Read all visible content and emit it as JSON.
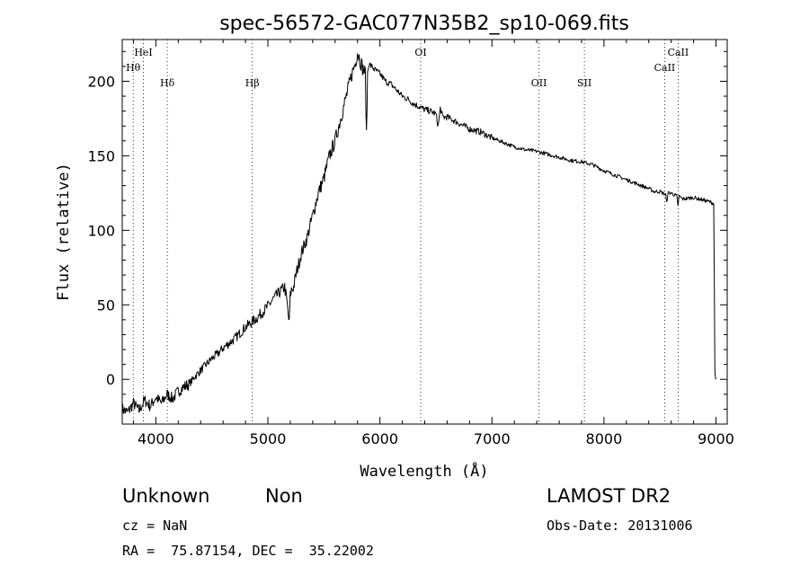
{
  "chart_data": {
    "type": "line",
    "title": "spec-56572-GAC077N35B2_sp10-069.fits",
    "xlabel": "Wavelength (Å)",
    "ylabel": "Flux (relative)",
    "xlim": [
      3700,
      9100
    ],
    "ylim": [
      -30,
      228
    ],
    "xticks": [
      4000,
      5000,
      6000,
      7000,
      8000,
      9000
    ],
    "yticks": [
      0,
      50,
      100,
      150,
      200
    ],
    "grid": false,
    "series": [
      {
        "x": [
          3700,
          3750,
          3800,
          3850,
          3900,
          3950,
          4000,
          4050,
          4100,
          4150,
          4200,
          4250,
          4300,
          4350,
          4400,
          4450,
          4500,
          4550,
          4600,
          4650,
          4700,
          4750,
          4800,
          4850,
          4900,
          4950,
          5000,
          5050,
          5100,
          5150,
          5170,
          5190,
          5200,
          5210,
          5230,
          5250,
          5300,
          5350,
          5400,
          5450,
          5500,
          5550,
          5600,
          5650,
          5700,
          5750,
          5780,
          5800,
          5820,
          5850,
          5870,
          5880,
          5890,
          5900,
          5950,
          6000,
          6050,
          6100,
          6150,
          6200,
          6250,
          6300,
          6350,
          6400,
          6450,
          6500,
          6520,
          6540,
          6560,
          6600,
          6700,
          6800,
          6900,
          7000,
          7100,
          7200,
          7300,
          7400,
          7500,
          7600,
          7700,
          7800,
          7900,
          8000,
          8100,
          8200,
          8300,
          8400,
          8450,
          8500,
          8550,
          8560,
          8570,
          8600,
          8650,
          8660,
          8670,
          8700,
          8800,
          8900,
          8950,
          8980,
          8990,
          9000
        ],
        "y": [
          -20,
          -22,
          -16,
          -21,
          -14,
          -18,
          -12,
          -16,
          -10,
          -13,
          -8,
          -5,
          -3,
          2,
          6,
          10,
          14,
          17,
          21,
          24,
          27,
          31,
          35,
          38,
          41,
          45,
          49,
          54,
          58,
          62,
          52,
          37,
          56,
          60,
          62,
          70,
          85,
          95,
          110,
          125,
          135,
          150,
          160,
          175,
          190,
          205,
          212,
          220,
          215,
          208,
          205,
          162,
          205,
          212,
          208,
          205,
          200,
          198,
          194,
          190,
          188,
          185,
          183,
          181,
          180,
          178,
          170,
          182,
          176,
          176,
          172,
          168,
          166,
          162,
          159,
          156,
          154,
          153,
          151,
          149,
          147,
          146,
          144,
          140,
          137,
          134,
          131,
          128,
          126,
          126,
          124,
          118,
          125,
          125,
          123,
          116,
          123,
          121,
          122,
          120,
          119,
          118,
          5,
          0
        ]
      }
    ],
    "line_markers": [
      {
        "label": "Hθ",
        "x": 3798,
        "row": "low"
      },
      {
        "label": "HeI",
        "x": 3889,
        "row": "high"
      },
      {
        "label": "Hδ",
        "x": 4102,
        "row": "mid"
      },
      {
        "label": "Hβ",
        "x": 4861,
        "row": "mid"
      },
      {
        "label": "OI",
        "x": 6364,
        "row": "high"
      },
      {
        "label": "OII",
        "x": 7420,
        "row": "mid"
      },
      {
        "label": "SII",
        "x": 7825,
        "row": "mid"
      },
      {
        "label": "CaII",
        "x": 8542,
        "row": "low"
      },
      {
        "label": "CaII",
        "x": 8662,
        "row": "high"
      }
    ]
  },
  "info": {
    "class": "Unknown",
    "subclass": "Non",
    "cz": "cz = NaN",
    "coords": "RA =  75.87154, DEC =  35.22002",
    "survey": "LAMOST DR2",
    "obs_date": "Obs-Date: 20131006"
  }
}
